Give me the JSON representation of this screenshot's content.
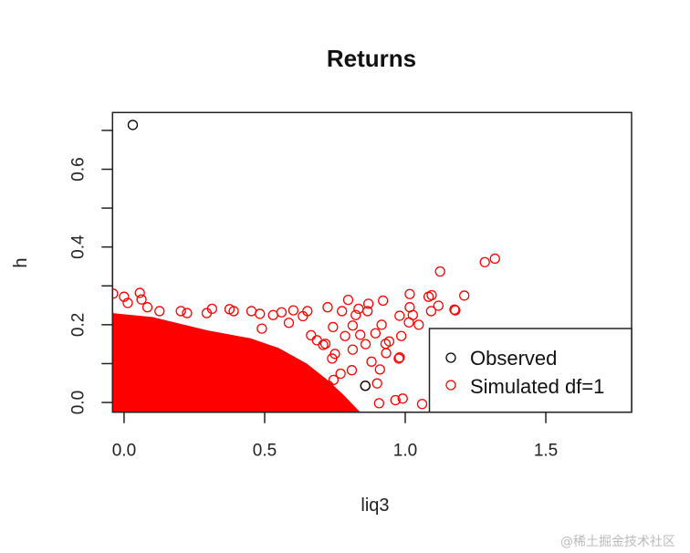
{
  "chart_data": {
    "type": "scatter",
    "title": "Returns",
    "xlabel": "liq3",
    "ylabel": "h",
    "xlim": [
      -0.041,
      1.805
    ],
    "ylim": [
      -0.025,
      0.746
    ],
    "x_ticks": [
      0.0,
      0.5,
      1.0,
      1.5
    ],
    "x_tick_labels": [
      "0.0",
      "0.5",
      "1.0",
      "1.5"
    ],
    "y_ticks": [
      0.0,
      0.1,
      0.2,
      0.3,
      0.4,
      0.5,
      0.6,
      0.7
    ],
    "y_tick_labels": [
      "0.0",
      "",
      "0.2",
      "",
      "0.4",
      "",
      "0.6",
      ""
    ],
    "grid": false,
    "legend_position": "bottom-right",
    "series": [
      {
        "name": "Observed",
        "color": "#000000",
        "marker": "open-circle",
        "points": [
          [
            0.031,
            0.714
          ],
          [
            0.858,
            0.043
          ]
        ]
      },
      {
        "name": "Simulated df=1",
        "color": "#ff0000",
        "marker": "open-circle",
        "dense_region": [
          [
            -0.041,
            0.23
          ],
          [
            0.1,
            0.22
          ],
          [
            0.3,
            0.185
          ],
          [
            0.45,
            0.165
          ],
          [
            0.55,
            0.14
          ],
          [
            0.65,
            0.1
          ],
          [
            0.72,
            0.06
          ],
          [
            0.78,
            0.02
          ],
          [
            0.84,
            -0.025
          ],
          [
            -0.041,
            -0.025
          ]
        ],
        "points": [
          [
            1.124,
            0.337
          ],
          [
            1.283,
            0.361
          ],
          [
            1.319,
            0.37
          ],
          [
            1.016,
            0.279
          ],
          [
            1.083,
            0.272
          ],
          [
            1.094,
            0.276
          ],
          [
            1.21,
            0.275
          ],
          [
            1.118,
            0.249
          ],
          [
            1.092,
            0.235
          ],
          [
            1.178,
            0.237
          ],
          [
            1.016,
            0.245
          ],
          [
            1.027,
            0.225
          ],
          [
            0.98,
            0.223
          ],
          [
            1.013,
            0.206
          ],
          [
            1.048,
            0.2
          ],
          [
            0.986,
            0.171
          ],
          [
            0.943,
            0.157
          ],
          [
            0.932,
            0.127
          ],
          [
            0.977,
            0.113
          ],
          [
            0.91,
            0.085
          ],
          [
            0.991,
            0.01
          ],
          [
            0.965,
            0.006
          ],
          [
            1.06,
            -0.004
          ],
          [
            1.175,
            0.239
          ],
          [
            0.93,
            0.151
          ],
          [
            0.98,
            0.116
          ],
          [
            0.907,
            -0.002
          ],
          [
            0.797,
            0.264
          ],
          [
            0.724,
            0.245
          ],
          [
            0.775,
            0.235
          ],
          [
            0.834,
            0.241
          ],
          [
            0.869,
            0.254
          ],
          [
            0.921,
            0.262
          ],
          [
            0.916,
            0.2
          ],
          [
            0.866,
            0.235
          ],
          [
            0.824,
            0.225
          ],
          [
            0.813,
            0.198
          ],
          [
            0.743,
            0.194
          ],
          [
            0.786,
            0.171
          ],
          [
            0.84,
            0.174
          ],
          [
            0.894,
            0.178
          ],
          [
            0.859,
            0.15
          ],
          [
            0.9,
            0.049
          ],
          [
            0.858,
            0.043
          ],
          [
            0.745,
            0.058
          ],
          [
            0.716,
            0.151
          ],
          [
            0.813,
            0.136
          ],
          [
            0.88,
            0.105
          ],
          [
            0.81,
            0.083
          ],
          [
            0.056,
            0.282
          ],
          [
            0.0,
            0.272
          ],
          [
            -0.039,
            0.28
          ],
          [
            0.013,
            0.256
          ],
          [
            0.062,
            0.265
          ],
          [
            0.083,
            0.245
          ],
          [
            0.126,
            0.235
          ],
          [
            0.202,
            0.235
          ],
          [
            0.224,
            0.23
          ],
          [
            0.313,
            0.241
          ],
          [
            0.294,
            0.23
          ],
          [
            0.375,
            0.24
          ],
          [
            0.39,
            0.235
          ],
          [
            0.453,
            0.235
          ],
          [
            0.483,
            0.228
          ],
          [
            0.53,
            0.225
          ],
          [
            0.56,
            0.232
          ],
          [
            0.602,
            0.237
          ],
          [
            0.652,
            0.235
          ],
          [
            0.636,
            0.222
          ],
          [
            0.586,
            0.205
          ],
          [
            0.49,
            0.19
          ],
          [
            0.665,
            0.173
          ],
          [
            0.686,
            0.16
          ],
          [
            0.708,
            0.148
          ],
          [
            0.75,
            0.125
          ],
          [
            0.74,
            0.113
          ],
          [
            0.77,
            0.074
          ],
          [
            0.727,
            0.043
          ]
        ]
      }
    ]
  },
  "legend": {
    "items": [
      {
        "label": "Observed",
        "color": "#000000"
      },
      {
        "label": "Simulated df=1",
        "color": "#ff0000"
      }
    ]
  },
  "watermark": "@稀土掘金技术社区"
}
